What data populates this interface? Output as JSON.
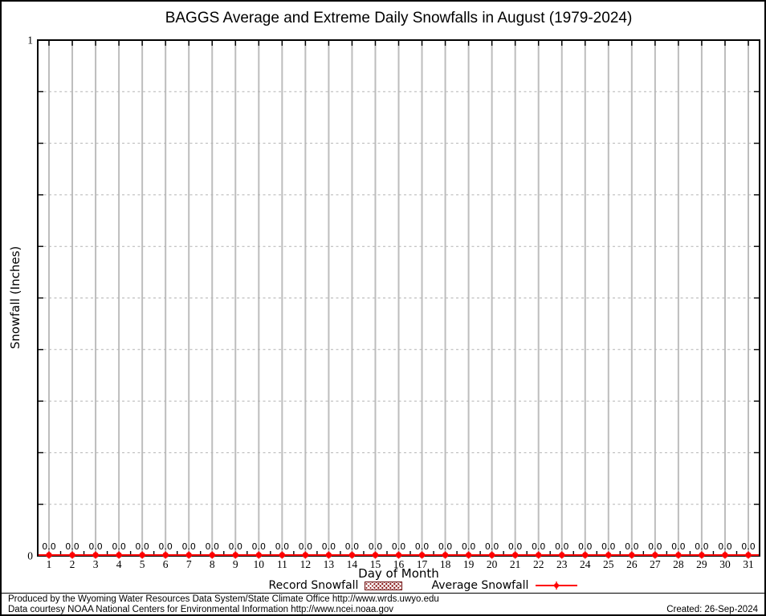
{
  "chart_data": {
    "type": "line",
    "title": "BAGGS Average and Extreme Daily Snowfalls in August (1979-2024)",
    "xlabel": "Day of Month",
    "ylabel": "Snowfall (Inches)",
    "ylim": [
      0,
      1
    ],
    "ytick_labels": [
      "0",
      "1"
    ],
    "y_minor_step": 0.1,
    "grid": {
      "vline_color": "#bdbdbd",
      "hline_color": "#b3b3b3",
      "axis_color": "#000000"
    },
    "legend_position": "bottom-center",
    "x": [
      1,
      2,
      3,
      4,
      5,
      6,
      7,
      8,
      9,
      10,
      11,
      12,
      13,
      14,
      15,
      16,
      17,
      18,
      19,
      20,
      21,
      22,
      23,
      24,
      25,
      26,
      27,
      28,
      29,
      30,
      31
    ],
    "series": [
      {
        "name": "Record Snowfall",
        "style": "hatched-boxes",
        "color": "#8b1a1a",
        "values": [
          0,
          0,
          0,
          0,
          0,
          0,
          0,
          0,
          0,
          0,
          0,
          0,
          0,
          0,
          0,
          0,
          0,
          0,
          0,
          0,
          0,
          0,
          0,
          0,
          0,
          0,
          0,
          0,
          0,
          0,
          0
        ]
      },
      {
        "name": "Average Snowfall",
        "style": "line-points",
        "color": "#ff0000",
        "values": [
          0,
          0,
          0,
          0,
          0,
          0,
          0,
          0,
          0,
          0,
          0,
          0,
          0,
          0,
          0,
          0,
          0,
          0,
          0,
          0,
          0,
          0,
          0,
          0,
          0,
          0,
          0,
          0,
          0,
          0,
          0
        ]
      }
    ],
    "point_labels": [
      "0.0",
      "0.0",
      "0.0",
      "0.0",
      "0.0",
      "0.0",
      "0.0",
      "0.0",
      "0.0",
      "0.0",
      "0.0",
      "0.0",
      "0.0",
      "0.0",
      "0.0",
      "0.0",
      "0.0",
      "0.0",
      "0.0",
      "0.0",
      "0.0",
      "0.0",
      "0.0",
      "0.0",
      "0.0",
      "0.0",
      "0.0",
      "0.0",
      "0.0",
      "0.0",
      "0.0"
    ]
  },
  "legend": {
    "items": [
      {
        "label": "Record Snowfall",
        "swatch": "hatched-box",
        "color": "#8b1a1a"
      },
      {
        "label": "Average Snowfall",
        "swatch": "line-point",
        "color": "#ff0000"
      }
    ]
  },
  "footer": {
    "line1": "Produced by the Wyoming Water Resources Data System/State Climate Office http://www.wrds.uwyo.edu",
    "line2": "Data courtesy NOAA National Centers for Environmental Information http://www.ncei.noaa.gov",
    "created": "Created: 26-Sep-2024"
  }
}
